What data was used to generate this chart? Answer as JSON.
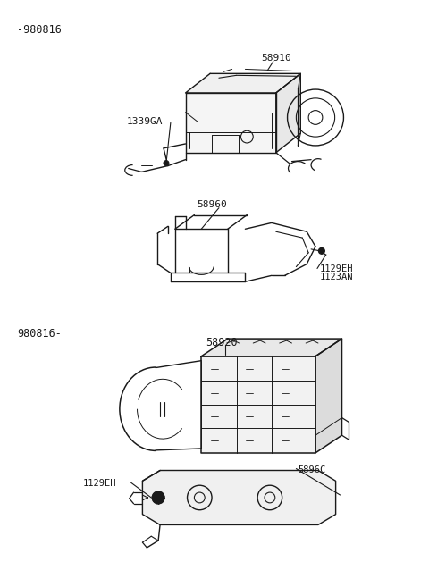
{
  "background_color": "#ffffff",
  "line_color": "#1a1a1a",
  "text_color": "#1a1a1a",
  "fig_width": 4.8,
  "fig_height": 6.57,
  "dpi": 100,
  "labels": {
    "top_left": "-980816",
    "bottom_left": "980816-",
    "part_58910": "58910",
    "part_1339GA": "1339GA",
    "part_58960": "58960",
    "part_1129EH_1": "1129EH",
    "part_1123AN": "1123AN",
    "part_58920": "58920",
    "part_5896C": "5896C",
    "part_1129EH_2": "1129EH"
  }
}
